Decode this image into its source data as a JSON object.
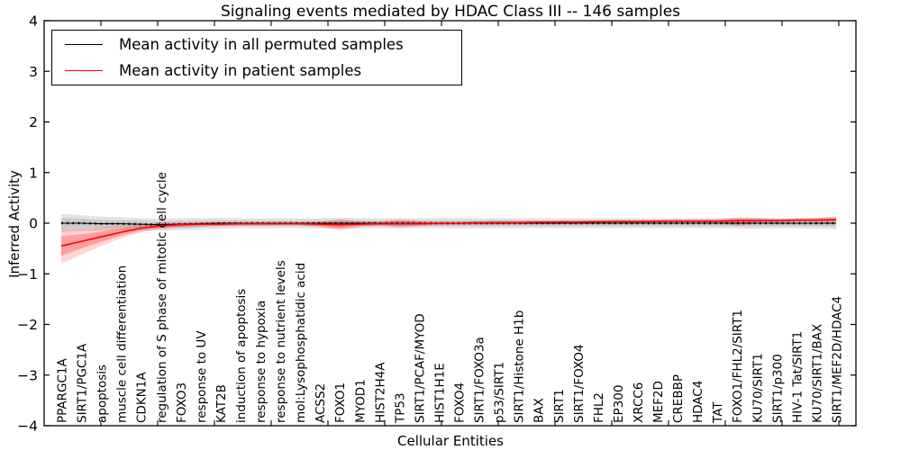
{
  "title": "Signaling events mediated by HDAC Class III -- 146 samples",
  "legend": {
    "items": [
      {
        "label": "Mean activity in all permuted samples",
        "color": "#000000"
      },
      {
        "label": "Mean activity in patient samples",
        "color": "#ff0000"
      }
    ],
    "position": "upper left"
  },
  "axes": {
    "xlabel": "Cellular Entities",
    "ylabel": "Inferred Activity",
    "ytick_labels": [
      "4",
      "3",
      "2",
      "1",
      "0",
      "−1",
      "−2",
      "−3",
      "−4"
    ]
  },
  "colors": {
    "permuted_line": "#000000",
    "patient_line": "#ff0000",
    "permuted_band": "rgba(0,0,0,0.11)",
    "permuted_band_inner": "rgba(0,0,0,0.10)",
    "patient_band": "rgba(255,0,0,0.17)",
    "patient_band_inner": "rgba(255,0,0,0.25)",
    "frame": "#000000"
  },
  "chart_data": {
    "type": "line",
    "title": "Signaling events mediated by HDAC Class III -- 146 samples",
    "xlabel": "Cellular Entities",
    "ylabel": "Inferred Activity",
    "ylim": [
      -4,
      4
    ],
    "yticks": [
      4,
      3,
      2,
      1,
      0,
      -1,
      -2,
      -3,
      -4
    ],
    "grid": false,
    "legend_position": "upper left",
    "categories": [
      "PPARGC1A",
      "SIRT1/PGC1A",
      "apoptosis",
      "muscle cell differentiation",
      "CDKN1A",
      "regulation of S phase of mitotic cell cycle",
      "FOXO3",
      "response to UV",
      "KAT2B",
      "induction of apoptosis",
      "response to hypoxia",
      "response to nutrient levels",
      "mol:Lysophosphatidic acid",
      "ACSS2",
      "FOXO1",
      "MYOD1",
      "HIST2H4A",
      "TP53",
      "SIRT1/PCAF/MYOD",
      "HIST1H1E",
      "FOXO4",
      "SIRT1/FOXO3a",
      "p53/SIRT1",
      "SIRT1/Histone H1b",
      "BAX",
      "SIRT1",
      "SIRT1/FOXO4",
      "FHL2",
      "EP300",
      "XRCC6",
      "MEF2D",
      "CREBBP",
      "HDAC4",
      "TAT",
      "FOXO1/FHL2/SIRT1",
      "KU70/SIRT1",
      "SIRT1/p300",
      "HIV-1 Tat/SIRT1",
      "KU70/SIRT1/BAX",
      "SIRT1/MEF2D/HDAC4"
    ],
    "series": [
      {
        "name": "Mean activity in all permuted samples",
        "color": "#000000",
        "values": [
          0,
          0,
          -0.01,
          -0.01,
          -0.02,
          -0.03,
          -0.02,
          -0.01,
          0,
          0,
          0,
          0,
          0,
          0,
          0,
          0,
          0,
          0,
          0,
          0,
          0,
          0,
          0,
          0,
          0,
          0,
          0,
          0,
          0,
          0,
          0,
          0,
          0,
          0,
          0,
          0,
          0,
          0,
          0,
          0
        ],
        "band_low": [
          -0.18,
          -0.16,
          -0.15,
          -0.14,
          -0.14,
          -0.15,
          -0.14,
          -0.12,
          -0.11,
          -0.1,
          -0.1,
          -0.1,
          -0.1,
          -0.1,
          -0.11,
          -0.1,
          -0.1,
          -0.1,
          -0.1,
          -0.1,
          -0.1,
          -0.1,
          -0.1,
          -0.1,
          -0.1,
          -0.1,
          -0.1,
          -0.1,
          -0.1,
          -0.1,
          -0.1,
          -0.1,
          -0.1,
          -0.1,
          -0.1,
          -0.11,
          -0.1,
          -0.1,
          -0.11,
          -0.12
        ],
        "band_high": [
          0.18,
          0.16,
          0.13,
          0.12,
          0.1,
          0.09,
          0.1,
          0.1,
          0.11,
          0.1,
          0.1,
          0.1,
          0.1,
          0.1,
          0.11,
          0.1,
          0.1,
          0.1,
          0.1,
          0.1,
          0.1,
          0.1,
          0.1,
          0.1,
          0.1,
          0.1,
          0.1,
          0.1,
          0.1,
          0.1,
          0.1,
          0.1,
          0.1,
          0.1,
          0.1,
          0.11,
          0.1,
          0.1,
          0.11,
          0.12
        ]
      },
      {
        "name": "Mean activity in patient samples",
        "color": "#ff0000",
        "values": [
          -0.45,
          -0.36,
          -0.27,
          -0.18,
          -0.1,
          -0.05,
          -0.03,
          -0.02,
          -0.02,
          -0.01,
          -0.01,
          -0.01,
          -0.01,
          -0.02,
          -0.03,
          -0.02,
          -0.01,
          -0.01,
          -0.01,
          0,
          0,
          0.01,
          0.01,
          0.01,
          0.02,
          0.02,
          0.02,
          0.03,
          0.03,
          0.03,
          0.04,
          0.04,
          0.04,
          0.04,
          0.05,
          0.05,
          0.05,
          0.06,
          0.06,
          0.07
        ],
        "band_low": [
          -0.8,
          -0.62,
          -0.45,
          -0.3,
          -0.18,
          -0.12,
          -0.09,
          -0.07,
          -0.06,
          -0.05,
          -0.05,
          -0.04,
          -0.04,
          -0.08,
          -0.14,
          -0.08,
          -0.05,
          -0.09,
          -0.06,
          -0.04,
          -0.04,
          -0.03,
          -0.03,
          -0.02,
          -0.02,
          -0.02,
          -0.01,
          -0.01,
          0,
          0,
          0,
          0.01,
          0.01,
          0.01,
          -0.06,
          0,
          0.01,
          0.02,
          0.02,
          0.01
        ],
        "band_high": [
          -0.1,
          -0.1,
          -0.08,
          -0.05,
          -0.02,
          0.01,
          0.02,
          0.02,
          0.02,
          0.02,
          0.02,
          0.02,
          0.02,
          0.03,
          0.08,
          0.04,
          0.03,
          0.08,
          0.05,
          0.03,
          0.03,
          0.04,
          0.05,
          0.05,
          0.05,
          0.06,
          0.06,
          0.06,
          0.07,
          0.07,
          0.07,
          0.08,
          0.08,
          0.08,
          0.12,
          0.11,
          0.09,
          0.1,
          0.11,
          0.13
        ]
      }
    ]
  }
}
